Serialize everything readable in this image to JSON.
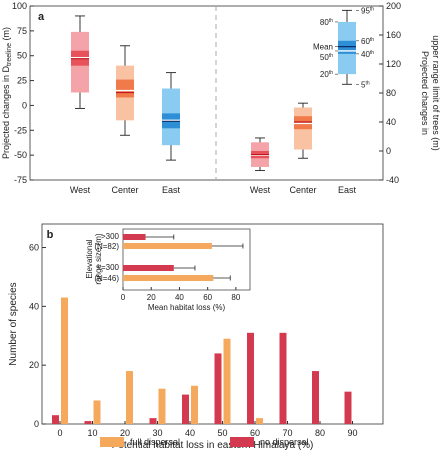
{
  "colors": {
    "west_dark": "#E8525A",
    "west_light": "#F4A3A8",
    "center_dark": "#F07A4A",
    "center_light": "#F9C2A3",
    "east_dark": "#2E8FD6",
    "east_light": "#8ACBF2",
    "orange": "#F5A95C",
    "red": "#D43A4F",
    "median": "#ffffff",
    "mean_west": "#C0161E",
    "mean_east": "#0C2D6B"
  },
  "chart_data": [
    {
      "panel": "a",
      "type": "box",
      "ylabel_left_pre": "Projected changes in D",
      "ylabel_left_sub": "treeline",
      "ylabel_left_post": " (m)",
      "ylabel_right_line1": "Projected changes in",
      "ylabel_right_line2": "upper range limit of trees (m)",
      "left_ylim": [
        -75,
        100
      ],
      "left_ticks": [
        -75,
        -50,
        -25,
        0,
        25,
        50,
        75,
        100
      ],
      "right_ylim": [
        -40,
        200
      ],
      "right_ticks": [
        -40,
        0,
        40,
        80,
        120,
        160,
        200
      ],
      "categories": [
        "West",
        "Center",
        "East",
        "West",
        "Center",
        "East"
      ],
      "left_boxes": [
        {
          "region": "West",
          "p5": -3,
          "p20": 13,
          "p40": 40,
          "median": 48,
          "mean": 47,
          "p60": 55,
          "p80": 74,
          "p95": 90
        },
        {
          "region": "Center",
          "p5": -30,
          "p20": -15,
          "p40": 8,
          "median": 15,
          "mean": 13,
          "p60": 26,
          "p80": 40,
          "p95": 60
        },
        {
          "region": "East",
          "p5": -55,
          "p20": -40,
          "p40": -23,
          "median": -15,
          "mean": -16,
          "p60": -8,
          "p80": 17,
          "p95": 33
        }
      ],
      "right_boxes": [
        {
          "region": "West",
          "p5": -27,
          "p20": -22,
          "p40": -10,
          "median": -6,
          "mean": -5,
          "p60": 0,
          "p80": 12,
          "p95": 18
        },
        {
          "region": "Center",
          "p5": -10,
          "p20": 2,
          "p40": 30,
          "median": 38,
          "mean": 40,
          "p60": 48,
          "p80": 60,
          "p95": 66
        },
        {
          "region": "East",
          "p5": 92,
          "p20": 106,
          "p40": 134,
          "median": 138,
          "mean": 144,
          "p60": 152,
          "p80": 178,
          "p95": 194
        }
      ],
      "legend_labels": {
        "p95": "95",
        "p80": "80",
        "mean": "Mean",
        "p50": "50",
        "p60": "60",
        "p40": "40",
        "p20": "20",
        "p5": "5",
        "suffix": "th"
      }
    },
    {
      "panel": "b",
      "type": "bar",
      "xlabel": "Potential habitat loss in eastern Himalaya (%)",
      "ylabel": "Number of species",
      "ylim": [
        0,
        68
      ],
      "yticks": [
        0,
        20,
        40,
        60
      ],
      "categories": [
        "0",
        "10",
        "20",
        "30",
        "40",
        "50",
        "60",
        "70",
        "80",
        "90"
      ],
      "series": [
        {
          "name": "full dispersal",
          "values": [
            43,
            8,
            18,
            12,
            13,
            29,
            2,
            0,
            0,
            0
          ]
        },
        {
          "name": "no dispersal",
          "values": [
            3,
            1,
            0,
            2,
            10,
            24,
            31,
            31,
            18,
            11
          ]
        }
      ]
    },
    {
      "panel": "b-inset",
      "type": "bar",
      "orientation": "horizontal",
      "xlabel": "Mean habitat loss (%)",
      "ylabel_line1": "Elevational",
      "ylabel_line2": "range size (m)",
      "xlim": [
        0,
        90
      ],
      "xticks": [
        0,
        20,
        40,
        60,
        80
      ],
      "groups": [
        {
          "label_line1": ">300",
          "label_line2": "(N=82)",
          "no_dispersal": 16,
          "no_dispersal_err": 20,
          "full_dispersal": 63,
          "full_dispersal_err": 22
        },
        {
          "label_line1": "<=300",
          "label_line2": "(N=46)",
          "no_dispersal": 36,
          "no_dispersal_err": 15,
          "full_dispersal": 64,
          "full_dispersal_err": 12
        }
      ]
    }
  ],
  "panel_labels": {
    "a": "a",
    "b": "b"
  },
  "legend": {
    "full": "full dispersal",
    "none": "no dispersal"
  }
}
